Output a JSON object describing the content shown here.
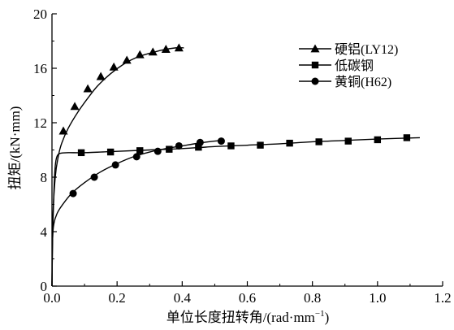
{
  "chart_data": {
    "type": "line",
    "xlabel": "单位长度扭转角/(rad·mm",
    "xlabel_sup": "−1",
    "xlabel_end": ")",
    "ylabel": "扭矩/(kN·mm)",
    "xlim": [
      0,
      1.2
    ],
    "ylim": [
      0,
      20
    ],
    "xticks": [
      0.0,
      0.2,
      0.4,
      0.6,
      0.8,
      1.0,
      1.2
    ],
    "xtick_labels": [
      "0.0",
      "0.2",
      "0.4",
      "0.6",
      "0.8",
      "1.0",
      "1.2"
    ],
    "yticks": [
      0,
      4,
      8,
      12,
      16,
      20
    ],
    "ytick_labels": [
      "0",
      "4",
      "8",
      "12",
      "16",
      "20"
    ],
    "grid": false,
    "legend_position": "top-right",
    "series": [
      {
        "name": "硬铝(LY12)",
        "marker": "triangle",
        "curve": [
          [
            0,
            0
          ],
          [
            0.002,
            4.5
          ],
          [
            0.01,
            8.0
          ],
          [
            0.02,
            9.6
          ],
          [
            0.03,
            10.5
          ],
          [
            0.05,
            11.6
          ],
          [
            0.08,
            12.8
          ],
          [
            0.11,
            13.8
          ],
          [
            0.14,
            14.7
          ],
          [
            0.18,
            15.6
          ],
          [
            0.22,
            16.3
          ],
          [
            0.26,
            16.8
          ],
          [
            0.3,
            17.1
          ],
          [
            0.34,
            17.35
          ],
          [
            0.38,
            17.5
          ],
          [
            0.405,
            17.5
          ]
        ],
        "points": [
          [
            0.035,
            11.4
          ],
          [
            0.07,
            13.2
          ],
          [
            0.11,
            14.5
          ],
          [
            0.15,
            15.4
          ],
          [
            0.19,
            16.1
          ],
          [
            0.23,
            16.6
          ],
          [
            0.27,
            17.0
          ],
          [
            0.31,
            17.2
          ],
          [
            0.35,
            17.4
          ],
          [
            0.39,
            17.5
          ]
        ]
      },
      {
        "name": "低碳钢",
        "marker": "square",
        "curve": [
          [
            0,
            0
          ],
          [
            0.002,
            3.5
          ],
          [
            0.006,
            7.0
          ],
          [
            0.01,
            8.8
          ],
          [
            0.015,
            9.5
          ],
          [
            0.025,
            9.75
          ],
          [
            0.05,
            9.8
          ],
          [
            0.1,
            9.8
          ],
          [
            0.2,
            9.9
          ],
          [
            0.3,
            10.0
          ],
          [
            0.4,
            10.1
          ],
          [
            0.5,
            10.25
          ],
          [
            0.6,
            10.35
          ],
          [
            0.7,
            10.45
          ],
          [
            0.8,
            10.6
          ],
          [
            0.9,
            10.7
          ],
          [
            1.0,
            10.8
          ],
          [
            1.13,
            10.9
          ]
        ],
        "points": [
          [
            0.09,
            9.8
          ],
          [
            0.18,
            9.85
          ],
          [
            0.27,
            9.95
          ],
          [
            0.36,
            10.05
          ],
          [
            0.45,
            10.2
          ],
          [
            0.55,
            10.3
          ],
          [
            0.64,
            10.35
          ],
          [
            0.73,
            10.5
          ],
          [
            0.82,
            10.6
          ],
          [
            0.91,
            10.65
          ],
          [
            1.0,
            10.75
          ],
          [
            1.09,
            10.9
          ]
        ]
      },
      {
        "name": "黄铜(H62)",
        "marker": "circle",
        "curve": [
          [
            0,
            0
          ],
          [
            0.002,
            3.5
          ],
          [
            0.006,
            4.6
          ],
          [
            0.015,
            5.3
          ],
          [
            0.03,
            5.9
          ],
          [
            0.06,
            6.8
          ],
          [
            0.1,
            7.6
          ],
          [
            0.15,
            8.4
          ],
          [
            0.2,
            9.0
          ],
          [
            0.25,
            9.5
          ],
          [
            0.3,
            9.85
          ],
          [
            0.35,
            10.1
          ],
          [
            0.4,
            10.3
          ],
          [
            0.45,
            10.5
          ],
          [
            0.5,
            10.65
          ],
          [
            0.525,
            10.7
          ]
        ],
        "points": [
          [
            0.065,
            6.8
          ],
          [
            0.13,
            8.0
          ],
          [
            0.195,
            8.9
          ],
          [
            0.26,
            9.5
          ],
          [
            0.325,
            9.9
          ],
          [
            0.39,
            10.3
          ],
          [
            0.455,
            10.55
          ],
          [
            0.52,
            10.65
          ]
        ]
      }
    ]
  }
}
